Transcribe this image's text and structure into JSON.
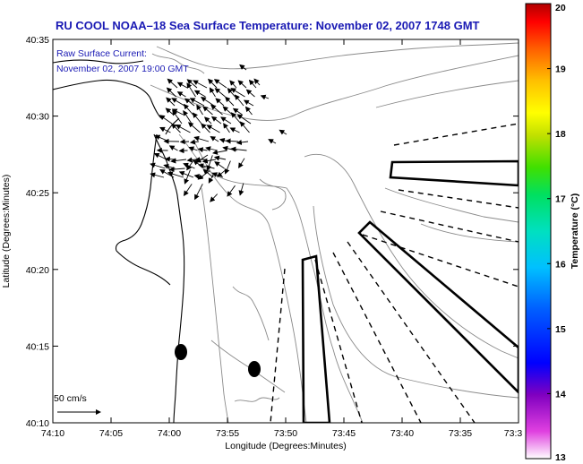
{
  "chart_data": {
    "type": "map",
    "title": "RU COOL  NOAA–18  Sea Surface Temperature:  November 02, 2007 1748 GMT",
    "annotation_lines": [
      "Raw Surface Current:",
      "November 02, 2007 19:00 GMT"
    ],
    "xlabel": "Longitude (Degrees:Minutes)",
    "ylabel": "Latitude (Degrees:Minutes)",
    "x_ticks": [
      "74:10",
      "74:05",
      "74:00",
      "73:55",
      "73:50",
      "73:45",
      "73:40",
      "73:35",
      "73:3"
    ],
    "y_ticks": [
      "40:10",
      "40:15",
      "40:20",
      "40:25",
      "40:30",
      "40:35"
    ],
    "xlim_minutes_west": [
      10,
      -30
    ],
    "ylim_minutes_north": [
      10,
      35
    ],
    "scale_label": "50 cm/s",
    "colorbar": {
      "label": "Temperature (°C)",
      "ticks": [
        "13",
        "14",
        "15",
        "16",
        "17",
        "18",
        "19",
        "20"
      ],
      "range": [
        13,
        20
      ]
    },
    "colors": {
      "title": "#1a1ab4",
      "land_contour": "#000000",
      "bathymetry": "#888888"
    }
  }
}
